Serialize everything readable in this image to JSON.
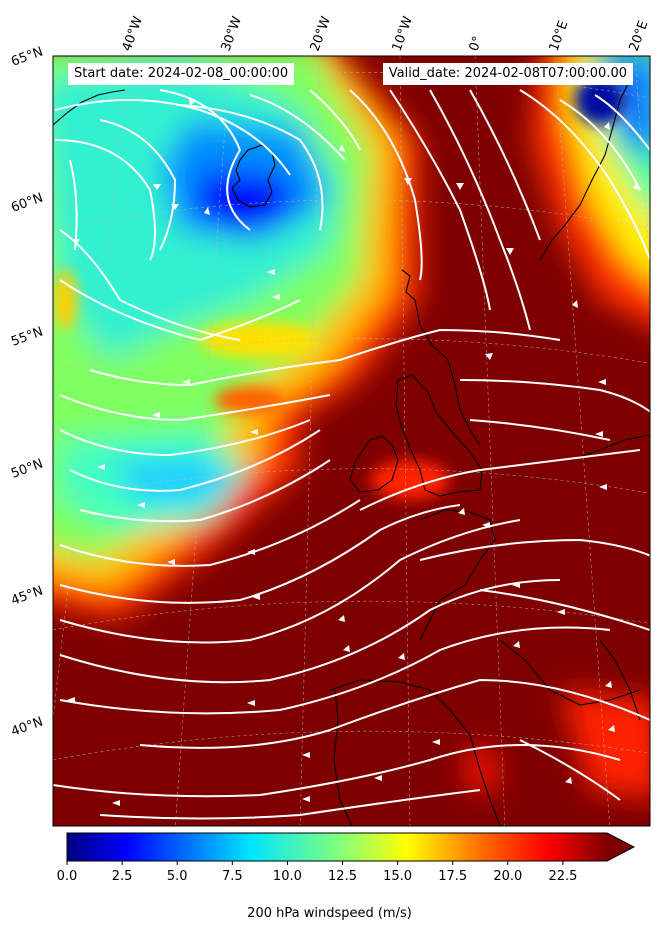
{
  "header": {
    "start_date": "Start date: 2024-02-08_00:00:00",
    "valid_date": "Valid_date: 2024-02-08T07:00:00.00"
  },
  "map": {
    "projection": "oblique conic, North Atlantic / Europe",
    "field": "200 hPa windspeed",
    "overlay": "streamlines (white)",
    "coastlines": true,
    "graticule": true,
    "lon_labels": [
      "40°W",
      "30°W",
      "20°W",
      "10°W",
      "0°",
      "10°E",
      "20°E"
    ],
    "lat_labels": [
      "65°N",
      "60°N",
      "55°N",
      "50°N",
      "45°N",
      "40°N"
    ],
    "colors": {
      "very_low": "#00007f",
      "low": "#0000ff",
      "mid_low": "#00bfff",
      "mid": "#7fff7f",
      "mid_high": "#ffff00",
      "high": "#ff4000",
      "max": "#7f0000",
      "streamline": "#ffffff",
      "coast": "#000000"
    }
  },
  "colorbar": {
    "title": "200 hPa windspeed (m/s)",
    "min": 0,
    "max": 24.5,
    "extend": "max",
    "colormap": "jet",
    "tick_values": [
      0,
      2.5,
      5,
      7.5,
      10,
      12.5,
      15,
      17.5,
      20,
      22.5
    ],
    "tick_labels": [
      "0.0",
      "2.5",
      "5.0",
      "7.5",
      "10.0",
      "12.5",
      "15.0",
      "17.5",
      "20.0",
      "22.5"
    ]
  }
}
